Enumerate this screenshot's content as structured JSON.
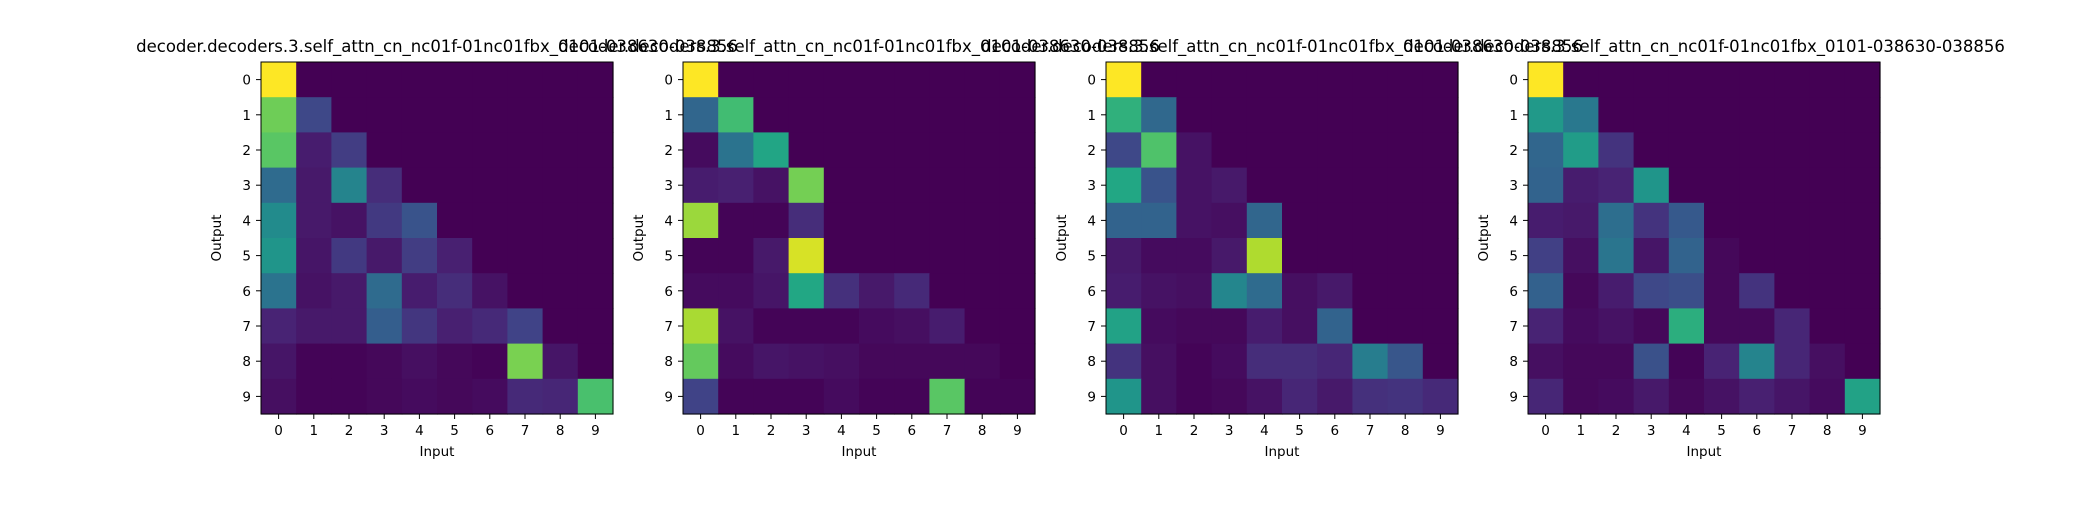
{
  "figure": {
    "colormap": "viridis"
  },
  "chart_data": [
    {
      "type": "heatmap",
      "title": "decoder.decoders.3.self_attn_cn_nc01f-01nc01fbx_0101-038630-038856",
      "xlabel": "Input",
      "ylabel": "Output",
      "x_ticks": [
        "0",
        "1",
        "2",
        "3",
        "4",
        "5",
        "6",
        "7",
        "8",
        "9"
      ],
      "y_ticks": [
        "0",
        "1",
        "2",
        "3",
        "4",
        "5",
        "6",
        "7",
        "8",
        "9"
      ],
      "range": [
        0,
        1
      ],
      "z": [
        [
          1.0,
          0.0,
          0.0,
          0.0,
          0.0,
          0.0,
          0.0,
          0.0,
          0.0,
          0.0
        ],
        [
          0.78,
          0.22,
          0.0,
          0.0,
          0.0,
          0.0,
          0.0,
          0.0,
          0.0,
          0.0
        ],
        [
          0.74,
          0.08,
          0.18,
          0.0,
          0.0,
          0.0,
          0.0,
          0.0,
          0.0,
          0.0
        ],
        [
          0.35,
          0.07,
          0.45,
          0.13,
          0.0,
          0.0,
          0.0,
          0.0,
          0.0,
          0.0
        ],
        [
          0.48,
          0.07,
          0.05,
          0.17,
          0.26,
          0.0,
          0.0,
          0.0,
          0.0,
          0.0
        ],
        [
          0.52,
          0.06,
          0.17,
          0.07,
          0.18,
          0.09,
          0.0,
          0.0,
          0.0,
          0.0
        ],
        [
          0.38,
          0.05,
          0.07,
          0.35,
          0.08,
          0.13,
          0.05,
          0.0,
          0.0,
          0.0
        ],
        [
          0.1,
          0.07,
          0.07,
          0.3,
          0.16,
          0.09,
          0.12,
          0.2,
          0.0,
          0.0
        ],
        [
          0.06,
          0.01,
          0.01,
          0.02,
          0.04,
          0.02,
          0.01,
          0.8,
          0.06,
          0.0
        ],
        [
          0.04,
          0.01,
          0.01,
          0.02,
          0.03,
          0.02,
          0.03,
          0.12,
          0.11,
          0.71
        ]
      ]
    },
    {
      "type": "heatmap",
      "title": "decoder.decoders.3.self_attn_cn_nc01f-01nc01fbx_0101-038630-038856",
      "xlabel": "Input",
      "ylabel": "Output",
      "x_ticks": [
        "0",
        "1",
        "2",
        "3",
        "4",
        "5",
        "6",
        "7",
        "8",
        "9"
      ],
      "y_ticks": [
        "0",
        "1",
        "2",
        "3",
        "4",
        "5",
        "6",
        "7",
        "8",
        "9"
      ],
      "range": [
        0,
        1
      ],
      "z": [
        [
          1.0,
          0.0,
          0.0,
          0.0,
          0.0,
          0.0,
          0.0,
          0.0,
          0.0,
          0.0
        ],
        [
          0.33,
          0.69,
          0.0,
          0.0,
          0.0,
          0.0,
          0.0,
          0.0,
          0.0,
          0.0
        ],
        [
          0.03,
          0.38,
          0.59,
          0.0,
          0.0,
          0.0,
          0.0,
          0.0,
          0.0,
          0.0
        ],
        [
          0.08,
          0.09,
          0.05,
          0.79,
          0.0,
          0.0,
          0.0,
          0.0,
          0.0,
          0.0
        ],
        [
          0.85,
          0.01,
          0.01,
          0.13,
          0.0,
          0.0,
          0.0,
          0.0,
          0.0,
          0.0
        ],
        [
          0.01,
          0.01,
          0.07,
          0.94,
          0.0,
          0.0,
          0.0,
          0.0,
          0.0,
          0.0
        ],
        [
          0.03,
          0.03,
          0.06,
          0.6,
          0.14,
          0.07,
          0.12,
          0.0,
          0.0,
          0.0
        ],
        [
          0.87,
          0.05,
          0.01,
          0.01,
          0.01,
          0.03,
          0.04,
          0.08,
          0.0,
          0.0
        ],
        [
          0.76,
          0.03,
          0.06,
          0.05,
          0.04,
          0.02,
          0.02,
          0.02,
          0.02,
          0.0
        ],
        [
          0.2,
          0.01,
          0.01,
          0.01,
          0.03,
          0.01,
          0.01,
          0.74,
          0.01,
          0.01
        ]
      ]
    },
    {
      "type": "heatmap",
      "title": "decoder.decoders.3.self_attn_cn_nc01f-01nc01fbx_0101-038630-038856",
      "xlabel": "Input",
      "ylabel": "Output",
      "x_ticks": [
        "0",
        "1",
        "2",
        "3",
        "4",
        "5",
        "6",
        "7",
        "8",
        "9"
      ],
      "y_ticks": [
        "0",
        "1",
        "2",
        "3",
        "4",
        "5",
        "6",
        "7",
        "8",
        "9"
      ],
      "range": [
        0,
        1
      ],
      "z": [
        [
          1.0,
          0.0,
          0.0,
          0.0,
          0.0,
          0.0,
          0.0,
          0.0,
          0.0,
          0.0
        ],
        [
          0.64,
          0.34,
          0.0,
          0.0,
          0.0,
          0.0,
          0.0,
          0.0,
          0.0,
          0.0
        ],
        [
          0.22,
          0.72,
          0.05,
          0.0,
          0.0,
          0.0,
          0.0,
          0.0,
          0.0,
          0.0
        ],
        [
          0.6,
          0.26,
          0.05,
          0.07,
          0.0,
          0.0,
          0.0,
          0.0,
          0.0,
          0.0
        ],
        [
          0.32,
          0.32,
          0.05,
          0.04,
          0.33,
          0.0,
          0.0,
          0.0,
          0.0,
          0.0
        ],
        [
          0.07,
          0.03,
          0.03,
          0.07,
          0.88,
          0.0,
          0.0,
          0.0,
          0.0,
          0.0
        ],
        [
          0.08,
          0.05,
          0.04,
          0.46,
          0.35,
          0.04,
          0.07,
          0.0,
          0.0,
          0.0
        ],
        [
          0.58,
          0.03,
          0.02,
          0.02,
          0.08,
          0.04,
          0.32,
          0.0,
          0.0,
          0.0
        ],
        [
          0.15,
          0.04,
          0.01,
          0.03,
          0.13,
          0.13,
          0.11,
          0.42,
          0.27,
          0.0
        ],
        [
          0.52,
          0.04,
          0.01,
          0.02,
          0.05,
          0.11,
          0.07,
          0.14,
          0.15,
          0.12
        ]
      ]
    },
    {
      "type": "heatmap",
      "title": "decoder.decoders.3.self_attn_cn_nc01f-01nc01fbx_0101-038630-038856",
      "xlabel": "Input",
      "ylabel": "Output",
      "x_ticks": [
        "0",
        "1",
        "2",
        "3",
        "4",
        "5",
        "6",
        "7",
        "8",
        "9"
      ],
      "y_ticks": [
        "0",
        "1",
        "2",
        "3",
        "4",
        "5",
        "6",
        "7",
        "8",
        "9"
      ],
      "range": [
        0,
        1
      ],
      "z": [
        [
          1.0,
          0.0,
          0.0,
          0.0,
          0.0,
          0.0,
          0.0,
          0.0,
          0.0,
          0.0
        ],
        [
          0.54,
          0.4,
          0.0,
          0.0,
          0.0,
          0.0,
          0.0,
          0.0,
          0.0,
          0.0
        ],
        [
          0.33,
          0.55,
          0.15,
          0.0,
          0.0,
          0.0,
          0.0,
          0.0,
          0.0,
          0.0
        ],
        [
          0.32,
          0.08,
          0.1,
          0.52,
          0.0,
          0.0,
          0.0,
          0.0,
          0.0,
          0.0
        ],
        [
          0.08,
          0.07,
          0.36,
          0.15,
          0.28,
          0.0,
          0.0,
          0.0,
          0.0,
          0.0
        ],
        [
          0.19,
          0.04,
          0.39,
          0.06,
          0.32,
          0.02,
          0.0,
          0.0,
          0.0,
          0.0
        ],
        [
          0.31,
          0.02,
          0.08,
          0.22,
          0.24,
          0.02,
          0.15,
          0.0,
          0.0,
          0.0
        ],
        [
          0.1,
          0.03,
          0.05,
          0.02,
          0.63,
          0.02,
          0.02,
          0.11,
          0.0,
          0.0
        ],
        [
          0.04,
          0.02,
          0.02,
          0.25,
          0.01,
          0.1,
          0.45,
          0.11,
          0.04,
          0.0
        ],
        [
          0.11,
          0.02,
          0.03,
          0.07,
          0.02,
          0.05,
          0.09,
          0.06,
          0.03,
          0.58
        ]
      ]
    }
  ]
}
